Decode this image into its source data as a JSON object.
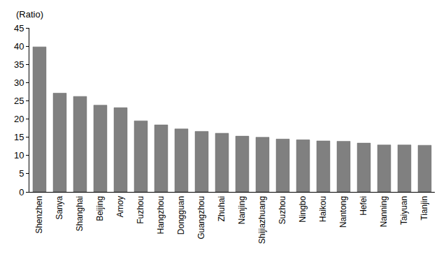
{
  "chart_data": {
    "type": "bar",
    "y_label": "(Ratio)",
    "categories": [
      "Shenzhen",
      "Sanya",
      "Shanghai",
      "Beijing",
      "Amoy",
      "Fuzhou",
      "Hangzhou",
      "Dongguan",
      "Guangzhou",
      "Zhuhai",
      "Nanjing",
      "Shijiazhuang",
      "Suzhou",
      "Ningbo",
      "Haikou",
      "Nantong",
      "Hefei",
      "Nanning",
      "Taiyuan",
      "Tianjin"
    ],
    "values": [
      39.8,
      27.1,
      26.2,
      23.8,
      23.1,
      19.5,
      18.4,
      17.3,
      16.6,
      16.1,
      15.3,
      15.0,
      14.5,
      14.3,
      14.0,
      13.9,
      13.4,
      12.9,
      12.9,
      12.8
    ],
    "color": "#808080",
    "ylim": [
      0,
      45
    ],
    "yticks": [
      0,
      5,
      10,
      15,
      20,
      25,
      30,
      35,
      40,
      45
    ],
    "grid": false
  }
}
